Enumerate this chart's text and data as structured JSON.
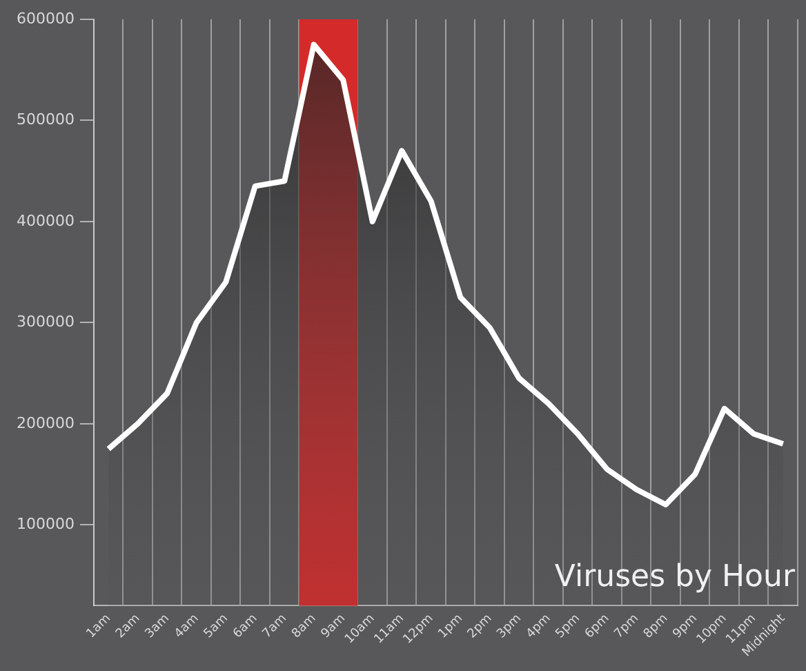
{
  "chart_data": {
    "type": "area",
    "title": "Viruses by Hour",
    "categories": [
      "1am",
      "2am",
      "3am",
      "4am",
      "5am",
      "6am",
      "7am",
      "8am",
      "9am",
      "10am",
      "11am",
      "12pm",
      "1pm",
      "2pm",
      "3pm",
      "4pm",
      "5pm",
      "6pm",
      "7pm",
      "8pm",
      "9pm",
      "10pm",
      "11pm",
      "Midnight"
    ],
    "series": [
      {
        "color": "#ffffff",
        "values": [
          175000,
          200000,
          230000,
          300000,
          340000,
          435000,
          440000,
          575000,
          540000,
          400000,
          470000,
          420000,
          325000,
          295000,
          245000,
          220000,
          190000,
          155000,
          135000,
          120000,
          150000,
          215000,
          190000,
          180000
        ]
      }
    ],
    "ylim": [
      20000,
      600000
    ],
    "yticks": [
      100000,
      200000,
      300000,
      400000,
      500000,
      600000
    ],
    "bands": [
      {
        "axis": "x",
        "from": "8am",
        "to": "9am",
        "color": "#d42a2a"
      }
    ],
    "grid": "x",
    "legend": false
  }
}
